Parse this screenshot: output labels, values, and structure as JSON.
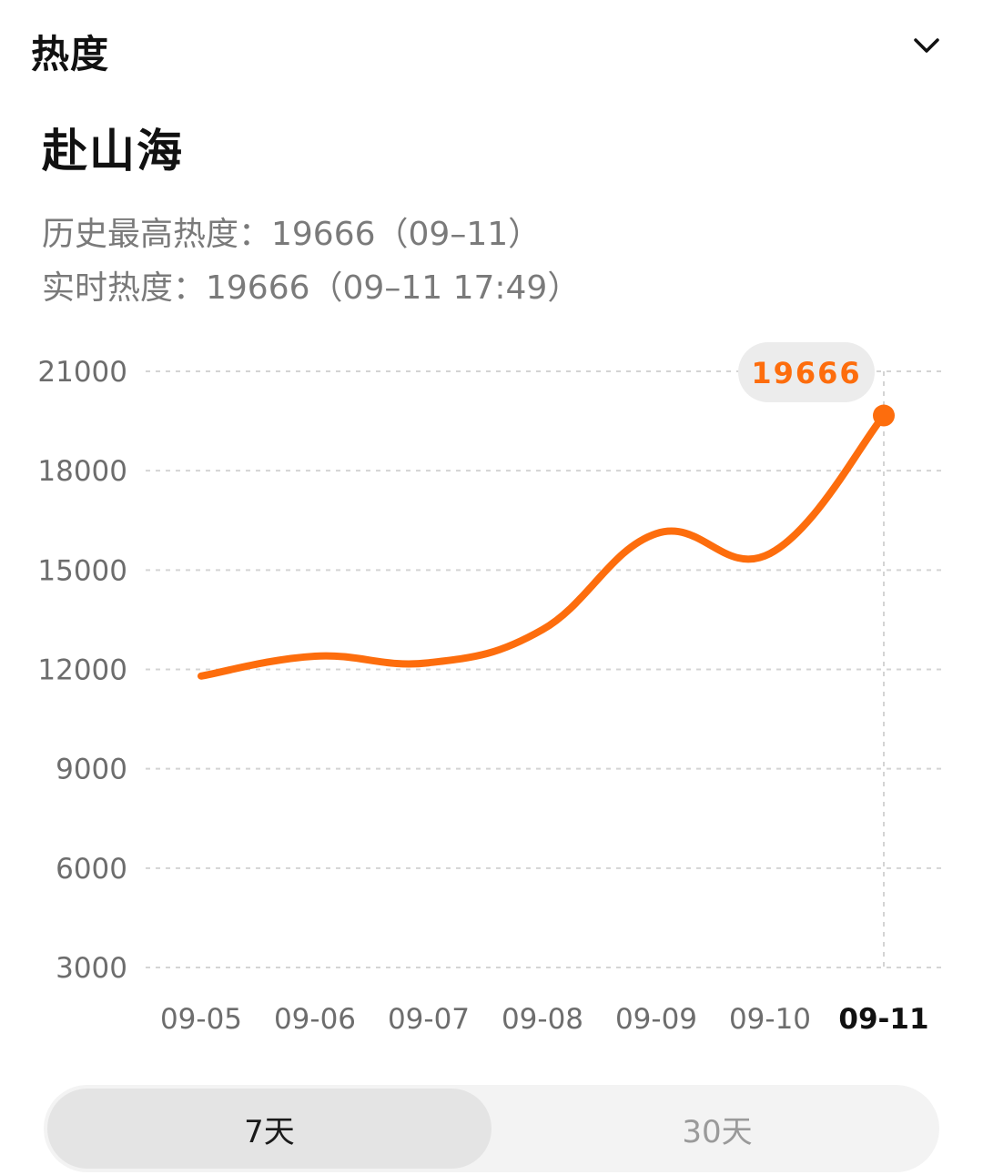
{
  "header": {
    "title": "热度",
    "toggle_icon": "chevron-down-icon"
  },
  "topic": {
    "title": "赴山海",
    "history_high": "历史最高热度：19666（09–11）",
    "realtime": "实时热度：19666（09–11 17:49）"
  },
  "colors": {
    "accent": "#fd6d0d",
    "grid": "#d4d4d4",
    "tooltip_bg": "#ececec"
  },
  "chart_data": {
    "type": "line",
    "x": [
      "09-05",
      "09-06",
      "09-07",
      "09-08",
      "09-09",
      "09-10",
      "09-11"
    ],
    "series": [
      {
        "values": [
          11800,
          12400,
          12200,
          13200,
          16100,
          15500,
          19666
        ]
      }
    ],
    "yticks": [
      "21000",
      "18000",
      "15000",
      "12000",
      "9000",
      "6000",
      "3000"
    ],
    "ylim": [
      3000,
      21000
    ],
    "grid": true,
    "highlight": {
      "x": "09-11",
      "label": "19666"
    }
  },
  "range_tabs": [
    {
      "label": "7天",
      "active": true
    },
    {
      "label": "30天",
      "active": false
    }
  ]
}
